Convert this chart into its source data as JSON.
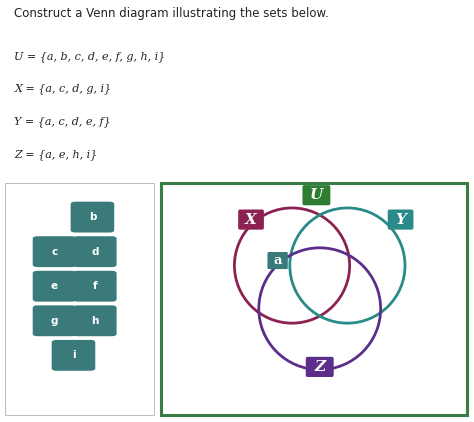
{
  "title": "Construct a Venn diagram illustrating the sets below.",
  "sets_text": [
    "U = {a, b, c, d, e, f, g, h, i}",
    "X = {a, c, d, g, i}",
    "Y = {a, c, d, e, f}",
    "Z = {a, e, h, i}"
  ],
  "bg_color": "#ebebeb",
  "outer_rect_color": "#3a7d44",
  "circle_X_color": "#8b2252",
  "circle_Y_color": "#2a8a8a",
  "circle_Z_color": "#5c2d8a",
  "label_U_bg": "#2e7d32",
  "label_X_bg": "#8b2252",
  "label_Y_bg": "#2a8a8a",
  "label_Z_bg": "#5c2d8a",
  "label_a_bg": "#3a7a7a",
  "node_bg": "#3a7a7a"
}
